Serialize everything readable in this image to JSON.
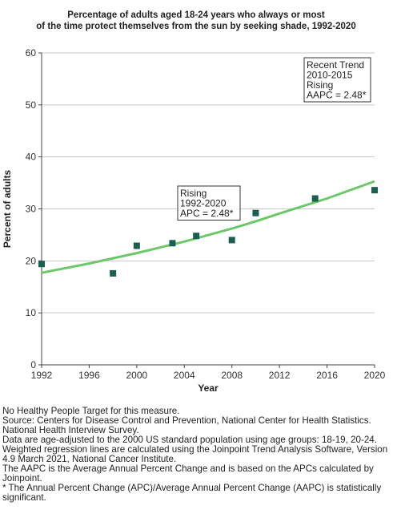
{
  "chart_data": {
    "type": "scatter",
    "title_lines": [
      "Percentage of adults aged 18-24 years who always or most",
      "of the time protect themselves from the sun by seeking shade, 1992-2020"
    ],
    "xlabel": "Year",
    "ylabel": "Percent of adults",
    "xlim": [
      1992,
      2020
    ],
    "ylim": [
      0,
      60
    ],
    "xticks": [
      1992,
      1996,
      2000,
      2004,
      2008,
      2012,
      2016,
      2020
    ],
    "yticks": [
      0,
      10,
      20,
      30,
      40,
      50,
      60
    ],
    "grid": "horizontal",
    "series": [
      {
        "x": [
          1992,
          1998,
          2000,
          2003,
          2005,
          2008,
          2010,
          2015,
          2020
        ],
        "y": [
          19.4,
          17.6,
          22.9,
          23.4,
          24.8,
          24.0,
          29.2,
          32.0,
          33.6
        ],
        "color": "#1b5e52"
      }
    ],
    "trend_line": {
      "x": [
        1992,
        1996,
        2000,
        2004,
        2008,
        2010,
        2012,
        2016,
        2020
      ],
      "y": [
        17.7,
        19.5,
        21.5,
        23.7,
        26.2,
        27.6,
        29.1,
        32.0,
        35.3
      ],
      "color": "#6cc96a"
    },
    "annotations": [
      {
        "lines": [
          "Recent Trend",
          "2010-2015",
          "Rising",
          "AAPC =  2.48*"
        ]
      },
      {
        "lines": [
          "Rising",
          "1992-2020",
          "APC =  2.48*"
        ]
      }
    ]
  },
  "footnotes": [
    "No Healthy People Target for this measure.",
    "Source: Centers for Disease Control and Prevention, National Center for Health Statistics. National Health Interview Survey.",
    "Data are age-adjusted to the 2000 US standard population using age groups: 18-19, 20-24.",
    "Weighted regression lines are calculated using the Joinpoint Trend Analysis Software, Version 4.9 March 2021, National Cancer Institute.",
    "The AAPC is the Average Annual Percent Change and is based on the APCs calculated by Joinpoint.",
    "* The Annual Percent Change (APC)/Average Annual Percent Change (AAPC) is statistically significant."
  ]
}
